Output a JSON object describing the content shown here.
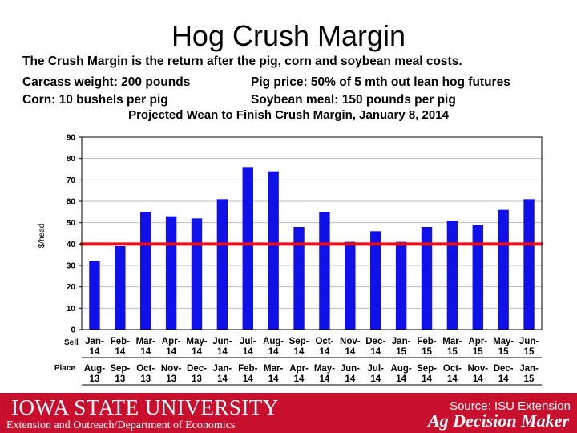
{
  "slide": {
    "title": "Hog Crush Margin",
    "line1": "The Crush Margin is the return after the pig, corn and soybean meal costs.",
    "line2a": "Carcass weight:  200 pounds",
    "line2b": "Pig price:  50% of 5 mth out lean hog futures",
    "line3a": "Corn:  10 bushels per pig",
    "line3b": "Soybean meal:  150 pounds per pig"
  },
  "footer": {
    "university": "IOWA STATE UNIVERSITY",
    "department": "Extension and Outreach/Department of Economics",
    "source": "Source: ISU Extension",
    "brand": "Ag Decision Maker",
    "color": "#c8102e"
  },
  "chart_data": {
    "type": "bar",
    "title": "Projected Wean to Finish Crush Margin, January 8, 2014",
    "ylabel": "$/head",
    "ylim": [
      0,
      90
    ],
    "yticks": [
      0,
      10,
      20,
      30,
      40,
      50,
      60,
      70,
      80,
      90
    ],
    "row_label_sell": "Sell",
    "row_label_place": "Place",
    "sell_categories": [
      [
        "Jan-",
        "14"
      ],
      [
        "Feb-",
        "14"
      ],
      [
        "Mar-",
        "14"
      ],
      [
        "Apr-",
        "14"
      ],
      [
        "May-",
        "14"
      ],
      [
        "Jun-",
        "14"
      ],
      [
        "Jul-",
        "14"
      ],
      [
        "Aug-",
        "14"
      ],
      [
        "Sep-",
        "14"
      ],
      [
        "Oct-",
        "14"
      ],
      [
        "Nov-",
        "14"
      ],
      [
        "Dec-",
        "14"
      ],
      [
        "Jan-",
        "15"
      ],
      [
        "Feb-",
        "15"
      ],
      [
        "Mar-",
        "15"
      ],
      [
        "Apr-",
        "15"
      ],
      [
        "May-",
        "15"
      ],
      [
        "Jun-",
        "15"
      ]
    ],
    "place_categories": [
      [
        "Aug-",
        "13"
      ],
      [
        "Sep-",
        "13"
      ],
      [
        "Oct-",
        "13"
      ],
      [
        "Nov-",
        "13"
      ],
      [
        "Dec-",
        "13"
      ],
      [
        "Jan-",
        "14"
      ],
      [
        "Feb-",
        "14"
      ],
      [
        "Mar-",
        "14"
      ],
      [
        "Apr-",
        "14"
      ],
      [
        "May-",
        "14"
      ],
      [
        "Jun-",
        "14"
      ],
      [
        "Jul-",
        "14"
      ],
      [
        "Aug-",
        "14"
      ],
      [
        "Sep-",
        "14"
      ],
      [
        "Oct-",
        "14"
      ],
      [
        "Nov-",
        "14"
      ],
      [
        "Dec-",
        "14"
      ],
      [
        "Jan-",
        "15"
      ]
    ],
    "values": [
      32,
      39,
      55,
      53,
      52,
      61,
      76,
      74,
      48,
      55,
      41,
      46,
      41,
      48,
      51,
      49,
      56,
      61
    ],
    "reference_line": 40,
    "bar_color": "#1010e8",
    "reference_color": "#e8101a",
    "grid": true,
    "legend": "none"
  }
}
